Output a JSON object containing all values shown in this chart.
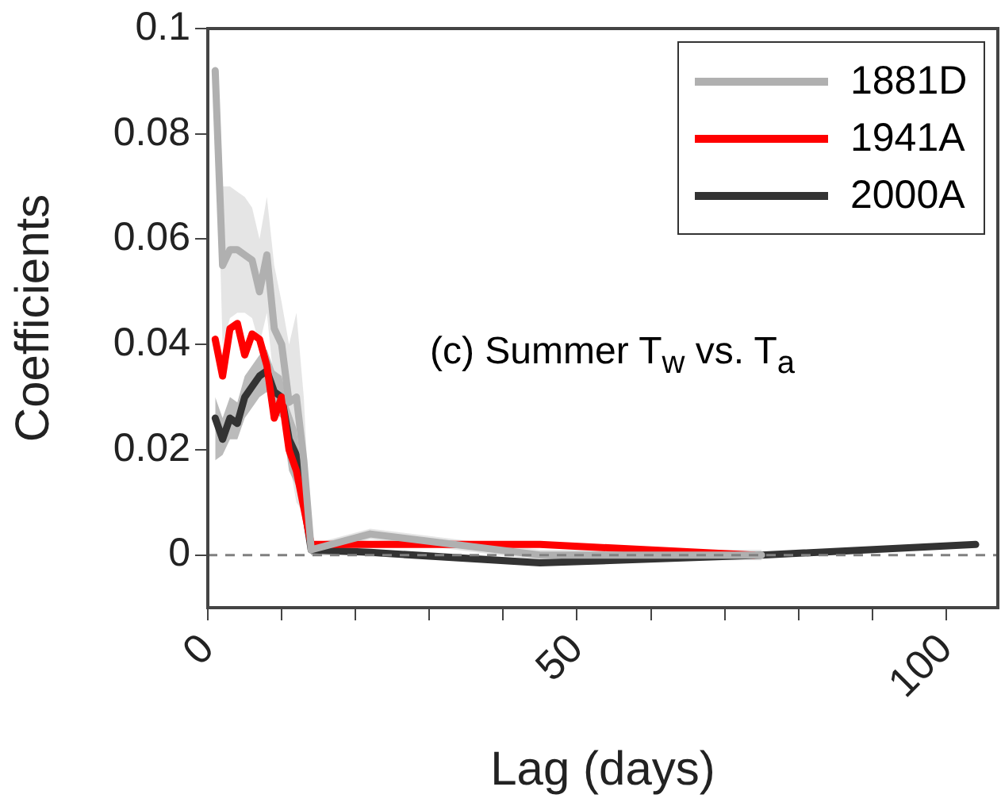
{
  "chart_data": {
    "type": "line",
    "xlabel": "Lag (days)",
    "ylabel": "Coefficients",
    "annotations": [
      "(c) Summer T$_{w}$ vs. T$_{a}$"
    ],
    "xlim": [
      0,
      107
    ],
    "xticks": [
      0,
      {
        "value": 10,
        "label": null
      },
      {
        "value": 20,
        "label": null
      },
      {
        "value": 30,
        "label": null
      },
      {
        "value": 40,
        "label": null
      },
      50,
      {
        "value": 60,
        "label": null
      },
      {
        "value": 70,
        "label": null
      },
      {
        "value": 80,
        "label": null
      },
      {
        "value": 90,
        "label": null
      },
      100
    ],
    "ylim": [
      -0.01,
      0.1
    ],
    "yticks": [
      0,
      0.02,
      0.04,
      0.06,
      0.08,
      0.1
    ],
    "grid": false,
    "legend": "top right",
    "marker": "none",
    "line_style": "solid",
    "ref_lines": [
      {
        "axis": "y",
        "value": 0,
        "color": "#808080",
        "line_style": "dashed"
      }
    ],
    "series": [
      {
        "name": "1881D",
        "color": "#b0b0b0",
        "x": [
          1,
          2,
          3,
          4,
          5,
          6,
          7,
          8,
          9,
          10,
          11,
          12,
          13,
          14,
          22,
          45,
          75
        ],
        "values": [
          0.092,
          0.055,
          0.058,
          0.058,
          0.057,
          0.056,
          0.05,
          0.057,
          0.043,
          0.04,
          0.029,
          0.03,
          0.018,
          0.001,
          0.004,
          0,
          0
        ],
        "lower": [
          0.091,
          0.04,
          0.045,
          0.046,
          0.046,
          0.045,
          0.04,
          0.046,
          0.032,
          0.03,
          0.018,
          0.01,
          0.008,
          0,
          0.003,
          -0.001,
          -0.001
        ],
        "upper": [
          0.093,
          0.07,
          0.07,
          0.069,
          0.068,
          0.066,
          0.06,
          0.068,
          0.055,
          0.048,
          0.04,
          0.046,
          0.03,
          0.002,
          0.005,
          0.001,
          0.001
        ]
      },
      {
        "name": "1941A",
        "color": "#ff0000",
        "x": [
          1,
          2,
          3,
          4,
          5,
          6,
          7,
          8,
          9,
          10,
          11,
          12,
          14,
          22,
          45,
          74
        ],
        "values": [
          0.041,
          0.034,
          0.043,
          0.044,
          0.038,
          0.042,
          0.041,
          0.036,
          0.026,
          0.03,
          0.02,
          0.016,
          0.002,
          0.002,
          0.002,
          0
        ]
      },
      {
        "name": "2000A",
        "color": "#333333",
        "x": [
          1,
          2,
          3,
          4,
          5,
          6,
          7,
          8,
          9,
          10,
          11,
          12,
          14,
          22,
          45,
          75,
          104
        ],
        "values": [
          0.026,
          0.022,
          0.026,
          0.025,
          0.03,
          0.032,
          0.034,
          0.035,
          0.031,
          0.03,
          0.022,
          0.019,
          0.001,
          0.0005,
          -0.0015,
          0,
          0.002
        ],
        "lower": [
          0.018,
          0.019,
          0.022,
          0.022,
          0.026,
          0.028,
          0.03,
          0.031,
          0.027,
          0.026,
          0.016,
          0.013,
          0,
          0,
          -0.002,
          -0.0005,
          0.0015
        ],
        "upper": [
          0.03,
          0.026,
          0.03,
          0.029,
          0.034,
          0.036,
          0.038,
          0.039,
          0.035,
          0.034,
          0.028,
          0.024,
          0.002,
          0.001,
          -0.001,
          0.0005,
          0.0025
        ]
      }
    ]
  }
}
